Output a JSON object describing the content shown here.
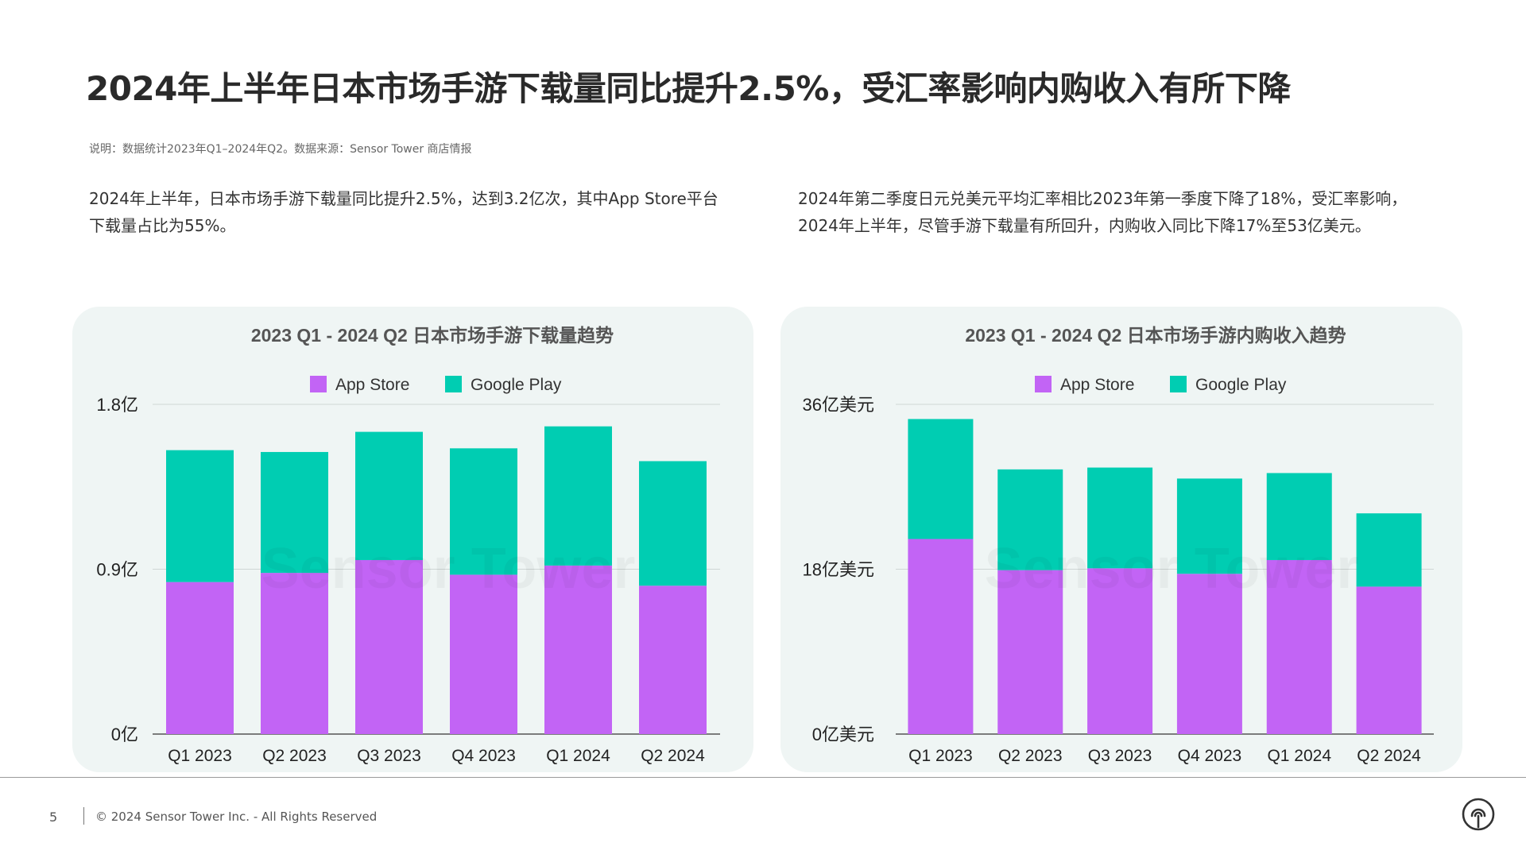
{
  "header": {
    "title": "2024年上半年日本市场手游下载量同比提升2.5%，受汇率影响内购收入有所下降",
    "note": "说明：数据统计2023年Q1–2024年Q2。数据来源：Sensor Tower 商店情报"
  },
  "paragraphs": {
    "left": "2024年上半年，日本市场手游下载量同比提升2.5%，达到3.2亿次，其中App Store平台下载量占比为55%。",
    "right": "2024年第二季度日元兑美元平均汇率相比2023年第一季度下降了18%，受汇率影响，2024年上半年，尽管手游下载量有所回升，内购收入同比下降17%至53亿美元。"
  },
  "watermark": "Sensor Tower",
  "footer": {
    "page_number": "5",
    "copyright": "© 2024 Sensor Tower Inc. - All Rights Reserved"
  },
  "colors": {
    "app_store": "#c264f5",
    "google_play": "#00cdb2",
    "panel_bg": "#eff5f4"
  },
  "icons": {
    "footer_logo": "sensor-tower-logo-icon"
  },
  "chart_data": [
    {
      "type": "bar",
      "stacked": true,
      "title": "2023 Q1 - 2024 Q2 日本市场手游下载量趋势",
      "categories": [
        "Q1 2023",
        "Q2 2023",
        "Q3 2023",
        "Q4 2023",
        "Q1 2024",
        "Q2 2024"
      ],
      "series": [
        {
          "name": "App Store",
          "color": "#c264f5",
          "values": [
            0.83,
            0.88,
            0.95,
            0.87,
            0.92,
            0.81
          ]
        },
        {
          "name": "Google Play",
          "color": "#00cdb2",
          "values": [
            0.72,
            0.66,
            0.7,
            0.69,
            0.76,
            0.68
          ]
        }
      ],
      "yticks": [
        "0亿",
        "0.9亿",
        "1.8亿"
      ],
      "ytick_values": [
        0,
        0.9,
        1.8
      ],
      "ylim": [
        0,
        1.8
      ],
      "legend": "top-center",
      "grid": true
    },
    {
      "type": "bar",
      "stacked": true,
      "title": "2023 Q1 - 2024 Q2 日本市场手游内购收入趋势",
      "categories": [
        "Q1 2023",
        "Q2 2023",
        "Q3 2023",
        "Q4 2023",
        "Q1 2024",
        "Q2 2024"
      ],
      "series": [
        {
          "name": "App Store",
          "color": "#c264f5",
          "values": [
            21.3,
            17.9,
            18.1,
            17.5,
            19.0,
            16.1
          ]
        },
        {
          "name": "Google Play",
          "color": "#00cdb2",
          "values": [
            13.1,
            11.0,
            11.0,
            10.4,
            9.5,
            8.0
          ]
        }
      ],
      "yticks": [
        "0亿美元",
        "18亿美元",
        "36亿美元"
      ],
      "ytick_values": [
        0,
        18,
        36
      ],
      "ylim": [
        0,
        36
      ],
      "legend": "top-center",
      "grid": true
    }
  ]
}
